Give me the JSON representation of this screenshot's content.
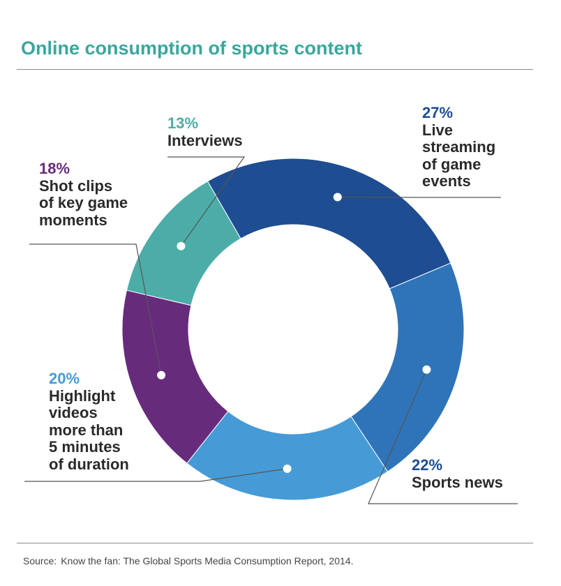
{
  "chart_data": {
    "type": "pie",
    "variant": "donut",
    "title": "Online consumption of sports content",
    "slices": [
      {
        "label": "Live streaming of game events",
        "value": 27,
        "display": "27%",
        "color": "#1e4d91"
      },
      {
        "label": "Sports news",
        "value": 22,
        "display": "22%",
        "color": "#2f74b9"
      },
      {
        "label": "Highlight videos more than 5 minutes of duration",
        "value": 20,
        "display": "20%",
        "color": "#469bd6"
      },
      {
        "label": "Shot clips of key game moments",
        "value": 18,
        "display": "18%",
        "color": "#672b7c"
      },
      {
        "label": "Interviews",
        "value": 13,
        "display": "13%",
        "color": "#4cada8"
      }
    ],
    "legend": "none"
  },
  "labels": [
    {
      "pct": "27%",
      "text": "Live\nstreaming\nof game\nevents",
      "pct_color": "#1e4d91"
    },
    {
      "pct": "22%",
      "text": "Sports news",
      "pct_color": "#1e4d91"
    },
    {
      "pct": "20%",
      "text": "Highlight\nvideos\nmore than\n5 minutes\nof duration",
      "pct_color": "#469bd6"
    },
    {
      "pct": "18%",
      "text": "Shot clips\nof key game\nmoments",
      "pct_color": "#672b7c"
    },
    {
      "pct": "13%",
      "text": "Interviews",
      "pct_color": "#4cada8"
    }
  ],
  "source": {
    "label": "Source:",
    "text": "Know the fan: The Global Sports Media Consumption Report, 2014."
  }
}
